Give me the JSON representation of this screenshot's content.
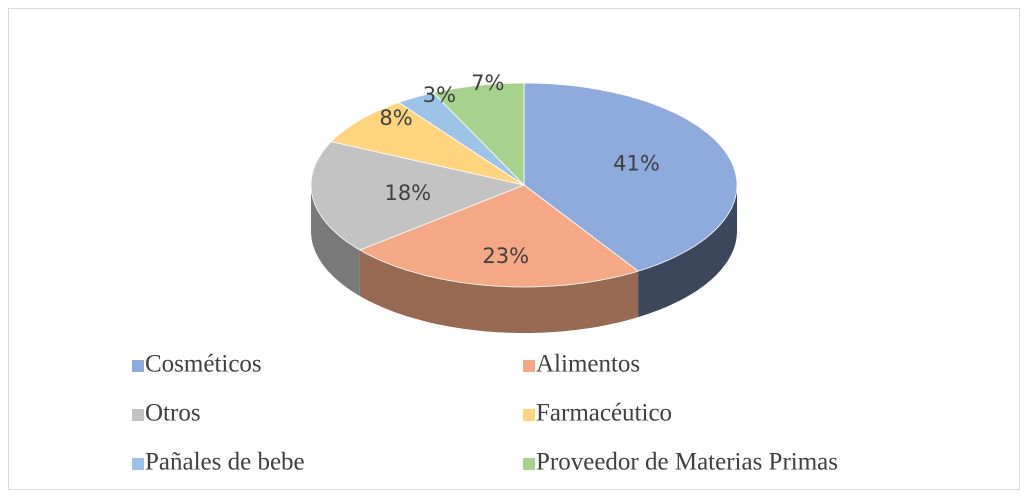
{
  "chart_data": {
    "type": "pie3d",
    "categories": [
      "Cosméticos",
      "Alimentos",
      "Otros",
      "Farmacéutico",
      "Pañales de bebe",
      "Proveedor de Materias Primas"
    ],
    "values": [
      41,
      23,
      18,
      8,
      3,
      7
    ],
    "value_labels": [
      "41%",
      "23%",
      "18%",
      "8%",
      "3%",
      "7%"
    ],
    "colors": [
      "#8faadc",
      "#f4a885",
      "#c3c3c3",
      "#ffd47f",
      "#9dc3e6",
      "#a9d18e"
    ],
    "legend": "bottom"
  }
}
